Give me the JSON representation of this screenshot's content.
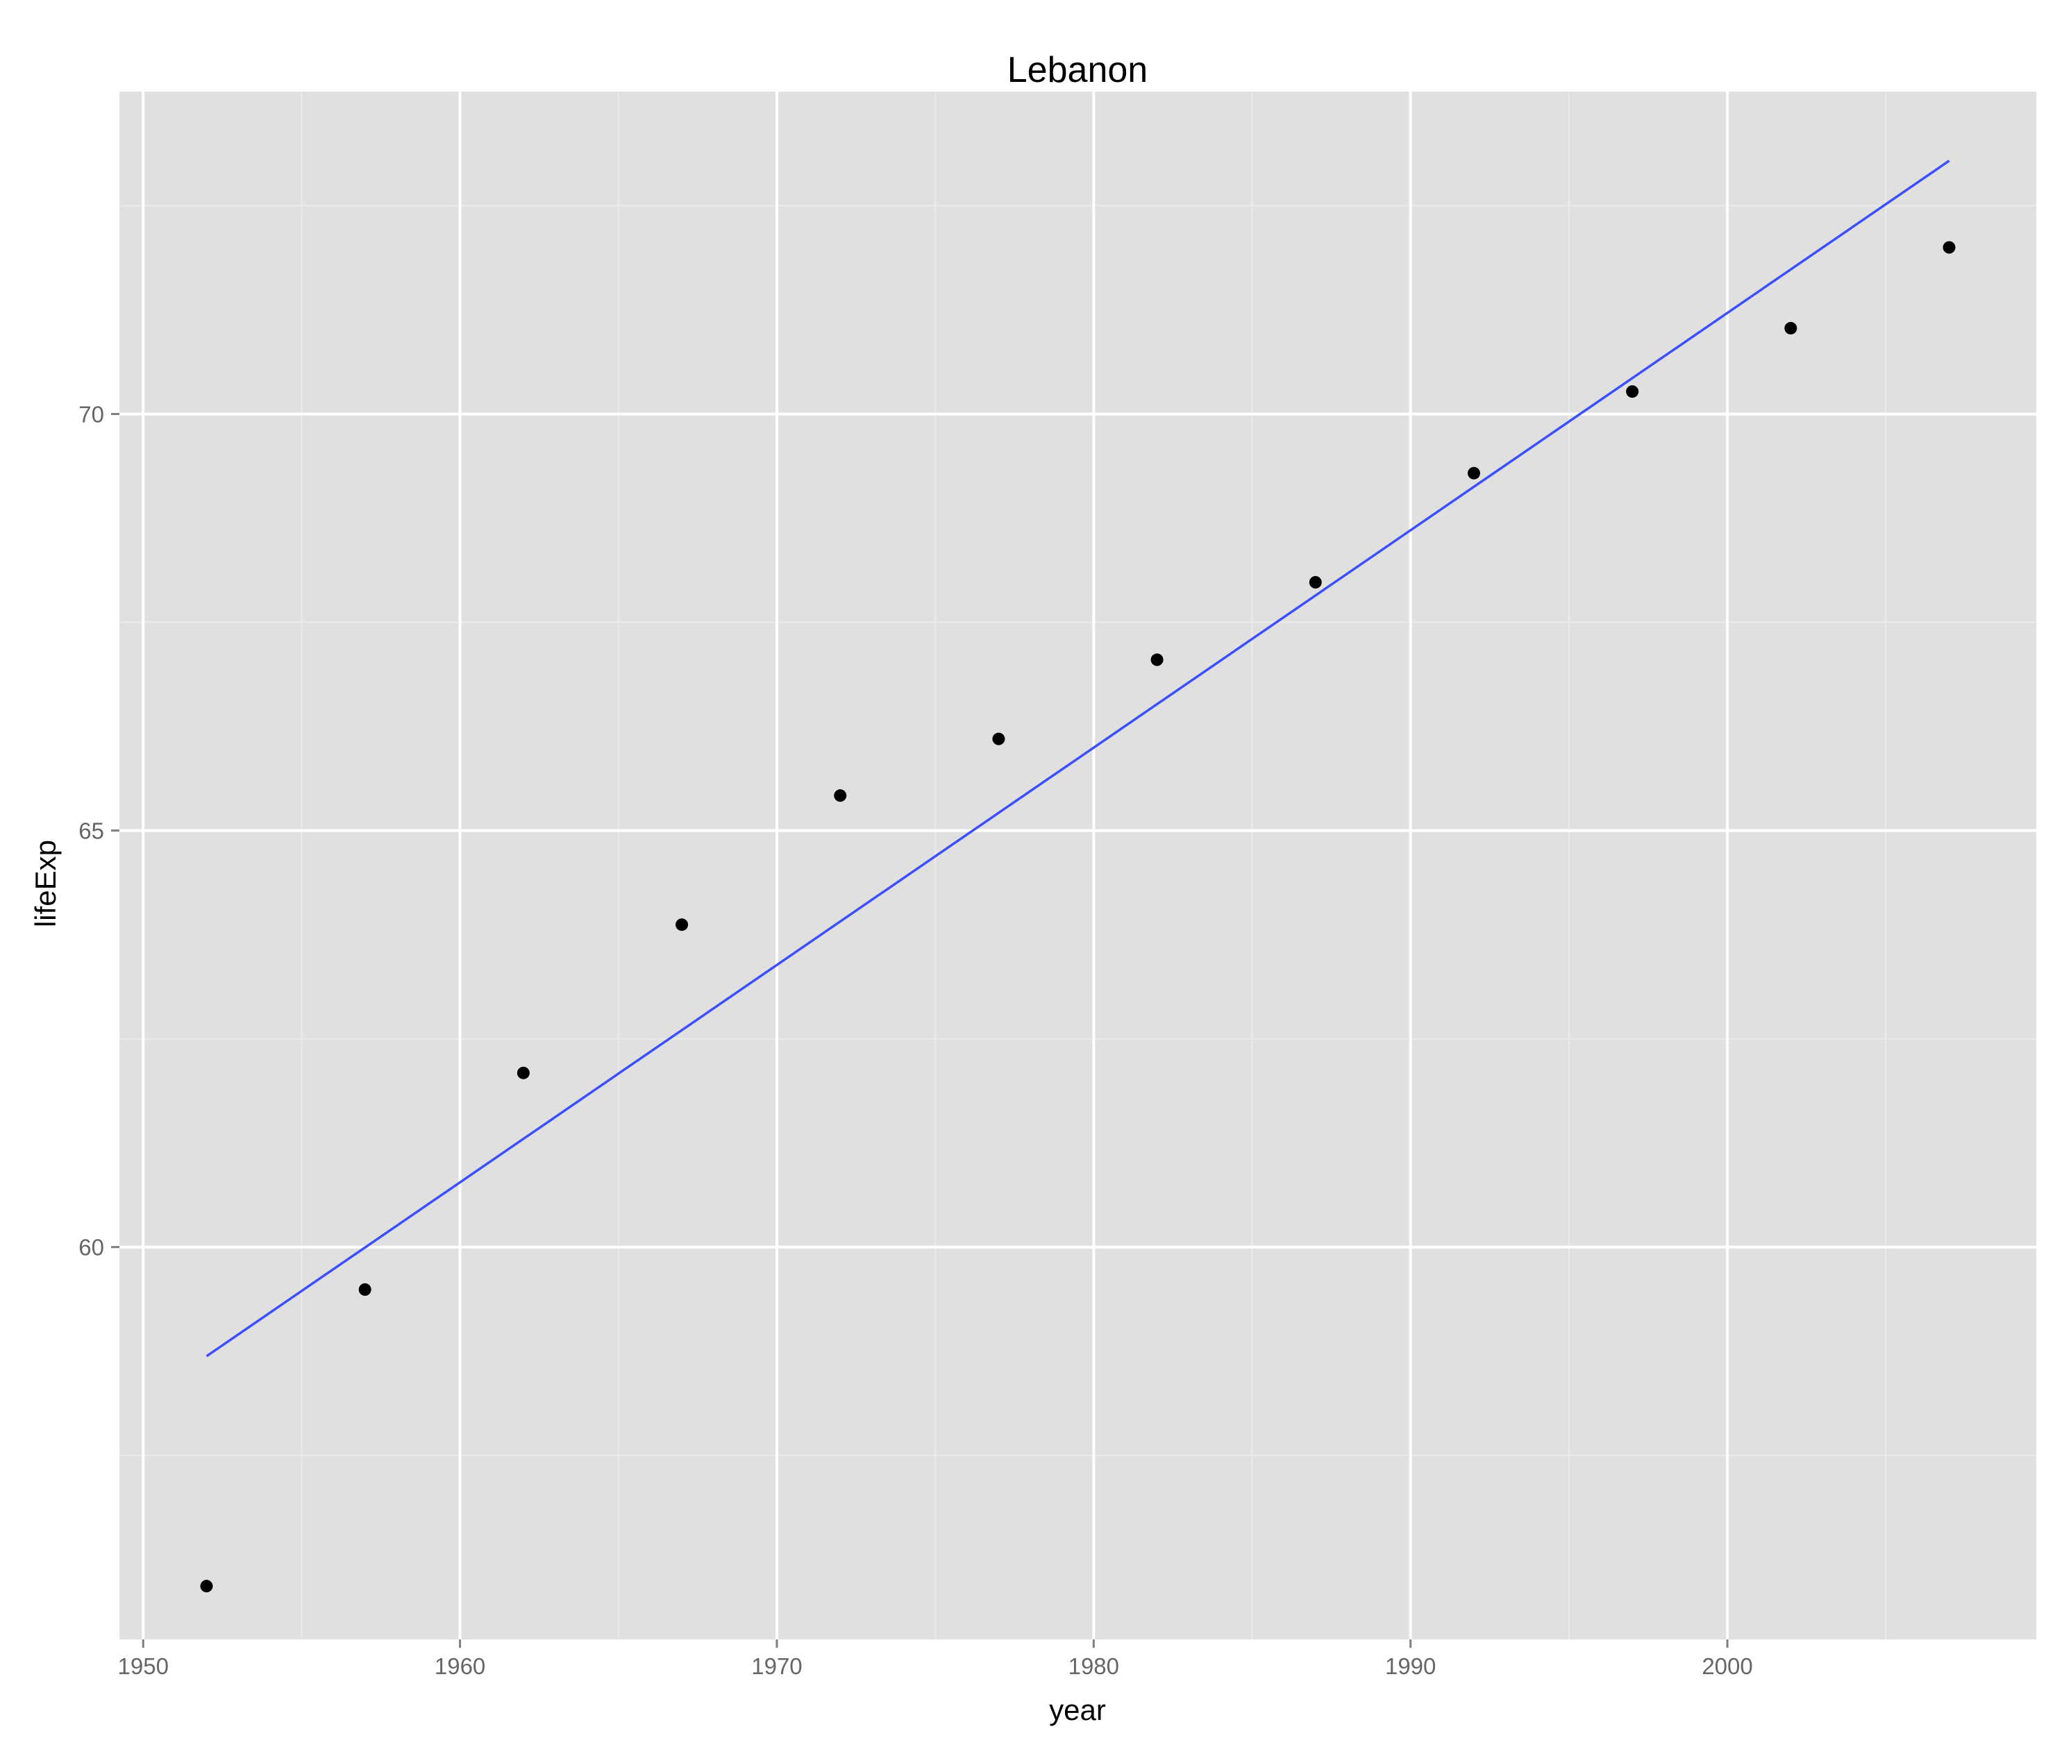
{
  "chart_data": {
    "type": "scatter",
    "title": "Lebanon",
    "xlabel": "year",
    "ylabel": "lifeExp",
    "xlim": [
      1949.25,
      2009.75
    ],
    "ylim": [
      55.29,
      73.87
    ],
    "x_ticks": [
      1950,
      1960,
      1970,
      1980,
      1990,
      2000
    ],
    "x_minor_ticks": [
      1955,
      1965,
      1975,
      1985,
      1995,
      2005
    ],
    "y_ticks": [
      60,
      65,
      70
    ],
    "y_minor_ticks": [
      57.5,
      62.5,
      67.5,
      72.5
    ],
    "grid": true,
    "legend": "none",
    "series": [
      {
        "kind": "points",
        "color": "#000000",
        "x": [
          1952,
          1957,
          1962,
          1967,
          1972,
          1977,
          1982,
          1987,
          1992,
          1997,
          2002,
          2007
        ],
        "y": [
          55.93,
          59.49,
          62.09,
          63.87,
          65.42,
          66.1,
          67.05,
          67.98,
          69.29,
          70.27,
          71.03,
          72.0
        ]
      },
      {
        "kind": "fit_line",
        "color": "#3a4fff",
        "x": [
          1952,
          2007
        ],
        "y": [
          58.69,
          73.04
        ]
      }
    ],
    "colors": {
      "panel_background": "#e0e0e0",
      "major_grid": "#ffffff",
      "minor_grid": "#ebebeb",
      "tick_label": "#666666",
      "text": "#000000"
    }
  }
}
